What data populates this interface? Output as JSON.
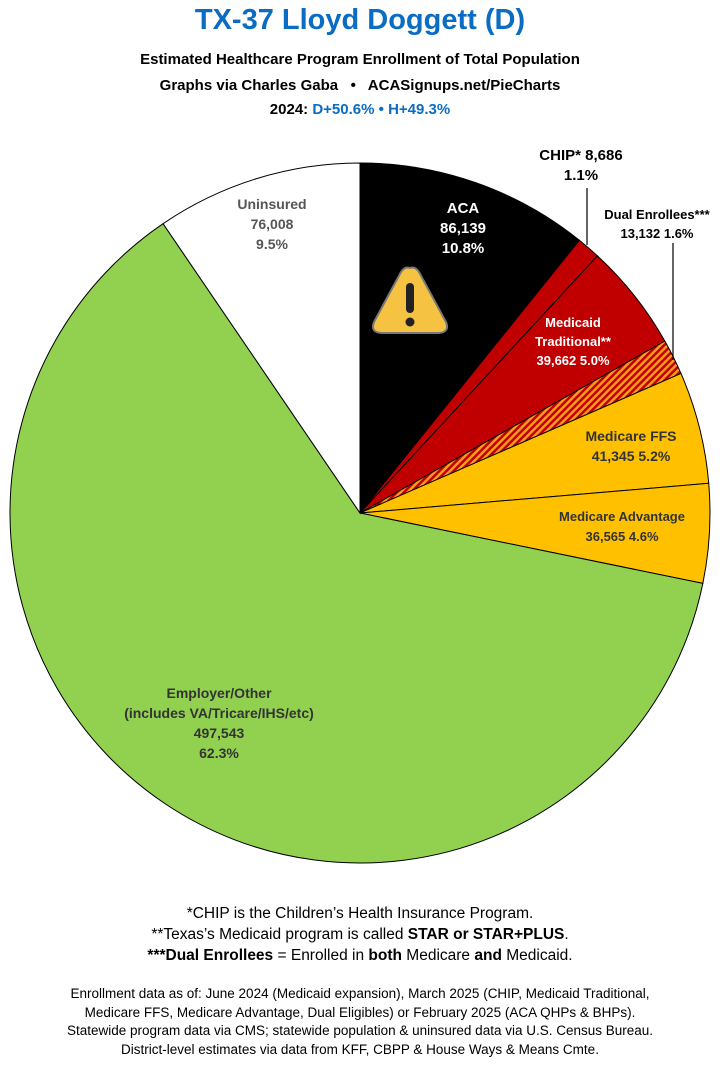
{
  "header": {
    "title": "TX-37 Lloyd Doggett (D)",
    "subtitle": "Estimated Healthcare Program Enrollment of Total Population",
    "credit": "Graphs via Charles Gaba   •   ACASignups.net/PieCharts",
    "year_label": "2024:",
    "d_margin": "D+50.6%",
    "sep": "•",
    "h_margin": "H+49.3%"
  },
  "chart_data": {
    "type": "pie",
    "start": "top, clockwise",
    "slices": [
      {
        "name": "ACA",
        "value": 86139,
        "pct": "10.8%",
        "color": "#000000"
      },
      {
        "name": "CHIP*",
        "value": 8686,
        "pct": "1.1%",
        "color": "#c00000"
      },
      {
        "name": "Medicaid Traditional**",
        "value": 39662,
        "pct": "5.0%",
        "color": "#c00000"
      },
      {
        "name": "Dual Enrollees***",
        "value": 13132,
        "pct": "1.6%",
        "color": "hatched #ff8c00/#c00000"
      },
      {
        "name": "Medicare FFS",
        "value": 41345,
        "pct": "5.2%",
        "color": "#ffc000"
      },
      {
        "name": "Medicare Advantage",
        "value": 36565,
        "pct": "4.6%",
        "color": "#ffc000"
      },
      {
        "name": "Employer/Other (includes VA/Tricare/IHS/etc)",
        "value": 497543,
        "pct": "62.3%",
        "color": "#92d050"
      },
      {
        "name": "Uninsured",
        "value": 76008,
        "pct": "9.5%",
        "color": "#ffffff"
      }
    ],
    "labels": {
      "aca": [
        "ACA",
        "86,139",
        "10.8%"
      ],
      "chip": [
        "CHIP* 8,686",
        "1.1%"
      ],
      "dual": [
        "Dual Enrollees***",
        "13,132 1.6%"
      ],
      "medicaid": [
        "Medicaid",
        "Traditional**",
        "39,662 5.0%"
      ],
      "ffs": [
        "Medicare FFS",
        "41,345 5.2%"
      ],
      "ma": [
        "Medicare Advantage",
        "36,565 4.6%"
      ],
      "employer": [
        "Employer/Other",
        "(includes VA/Tricare/IHS/etc)",
        "497,543",
        "62.3%"
      ],
      "uninsured": [
        "Uninsured",
        "76,008",
        "9.5%"
      ]
    },
    "icon": "warning-icon"
  },
  "notes": {
    "n1": "*CHIP is the Children’s Health Insurance Program.",
    "n2a": "**Texas’s Medicaid program is called ",
    "n2b": "STAR or STAR+PLUS",
    "n2c": ".",
    "n3a": "***Dual Enrollees",
    "n3b": " = Enrolled in ",
    "n3c": "both",
    "n3d": " Medicare ",
    "n3e": "and",
    "n3f": " Medicaid."
  },
  "sources": [
    "Enrollment data as of: June 2024 (Medicaid expansion), March 2025 (CHIP, Medicaid Traditional,",
    "Medicare FFS, Medicare Advantage, Dual Eligibles) or February 2025 (ACA QHPs & BHPs).",
    "Statewide program data via CMS; statewide population & uninsured data via U.S. Census Bureau.",
    "District-level estimates via data from KFF, CBPP & House Ways & Means Cmte."
  ]
}
